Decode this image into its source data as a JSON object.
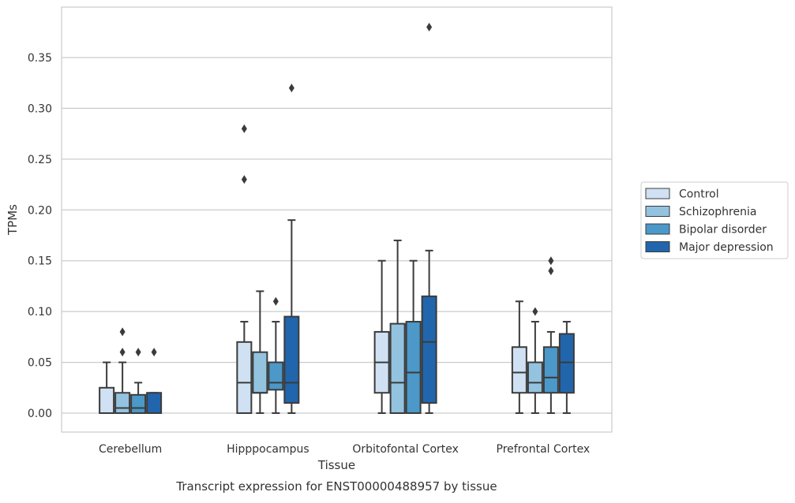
{
  "chart_data": {
    "type": "box",
    "caption": "Transcript expression for ENST00000488957 by tissue",
    "xlabel": "Tissue",
    "ylabel": "TPMs",
    "ylim": [
      -0.018,
      0.397
    ],
    "yticks": [
      0.0,
      0.05,
      0.1,
      0.15,
      0.2,
      0.25,
      0.3,
      0.35
    ],
    "ytick_labels": [
      "0.00",
      "0.05",
      "0.10",
      "0.15",
      "0.20",
      "0.25",
      "0.30",
      "0.35"
    ],
    "grid": "horizontal",
    "legend_position": "center-right-outside",
    "categories": [
      "Cerebellum",
      "Hipppocampus",
      "Orbitofontal Cortex",
      "Prefrontal Cortex"
    ],
    "series": [
      {
        "name": "Control",
        "color": "#cfe1f2",
        "boxes": [
          {
            "whislo": 0.0,
            "q1": 0.0,
            "med": 0.0,
            "q3": 0.025,
            "whishi": 0.05,
            "fliers": []
          },
          {
            "whislo": 0.0,
            "q1": 0.0,
            "med": 0.03,
            "q3": 0.07,
            "whishi": 0.09,
            "fliers": [
              0.23,
              0.28
            ]
          },
          {
            "whislo": 0.0,
            "q1": 0.02,
            "med": 0.05,
            "q3": 0.08,
            "whishi": 0.15,
            "fliers": []
          },
          {
            "whislo": 0.0,
            "q1": 0.02,
            "med": 0.04,
            "q3": 0.065,
            "whishi": 0.11,
            "fliers": []
          }
        ]
      },
      {
        "name": "Schizophrenia",
        "color": "#93c3df",
        "boxes": [
          {
            "whislo": 0.0,
            "q1": 0.0,
            "med": 0.005,
            "q3": 0.02,
            "whishi": 0.05,
            "fliers": [
              0.06,
              0.08
            ]
          },
          {
            "whislo": 0.0,
            "q1": 0.02,
            "med": 0.02,
            "q3": 0.06,
            "whishi": 0.12,
            "fliers": []
          },
          {
            "whislo": 0.0,
            "q1": 0.0,
            "med": 0.03,
            "q3": 0.088,
            "whishi": 0.17,
            "fliers": []
          },
          {
            "whislo": 0.0,
            "q1": 0.02,
            "med": 0.03,
            "q3": 0.05,
            "whishi": 0.09,
            "fliers": [
              0.1
            ]
          }
        ]
      },
      {
        "name": "Bipolar disorder",
        "color": "#4b98c9",
        "boxes": [
          {
            "whislo": 0.0,
            "q1": 0.0,
            "med": 0.005,
            "q3": 0.018,
            "whishi": 0.03,
            "fliers": [
              0.06
            ]
          },
          {
            "whislo": 0.0,
            "q1": 0.023,
            "med": 0.03,
            "q3": 0.05,
            "whishi": 0.09,
            "fliers": [
              0.11
            ]
          },
          {
            "whislo": 0.0,
            "q1": 0.0,
            "med": 0.04,
            "q3": 0.09,
            "whishi": 0.15,
            "fliers": []
          },
          {
            "whislo": 0.0,
            "q1": 0.02,
            "med": 0.035,
            "q3": 0.065,
            "whishi": 0.08,
            "fliers": [
              0.14,
              0.15
            ]
          }
        ]
      },
      {
        "name": "Major depression",
        "color": "#2166ac",
        "boxes": [
          {
            "whislo": 0.0,
            "q1": 0.0,
            "med": 0.0,
            "q3": 0.02,
            "whishi": 0.02,
            "fliers": [
              0.06
            ]
          },
          {
            "whislo": 0.0,
            "q1": 0.01,
            "med": 0.03,
            "q3": 0.095,
            "whishi": 0.19,
            "fliers": [
              0.32
            ]
          },
          {
            "whislo": 0.0,
            "q1": 0.01,
            "med": 0.07,
            "q3": 0.115,
            "whishi": 0.16,
            "fliers": [
              0.38
            ]
          },
          {
            "whislo": 0.0,
            "q1": 0.02,
            "med": 0.05,
            "q3": 0.078,
            "whishi": 0.09,
            "fliers": []
          }
        ]
      }
    ]
  }
}
